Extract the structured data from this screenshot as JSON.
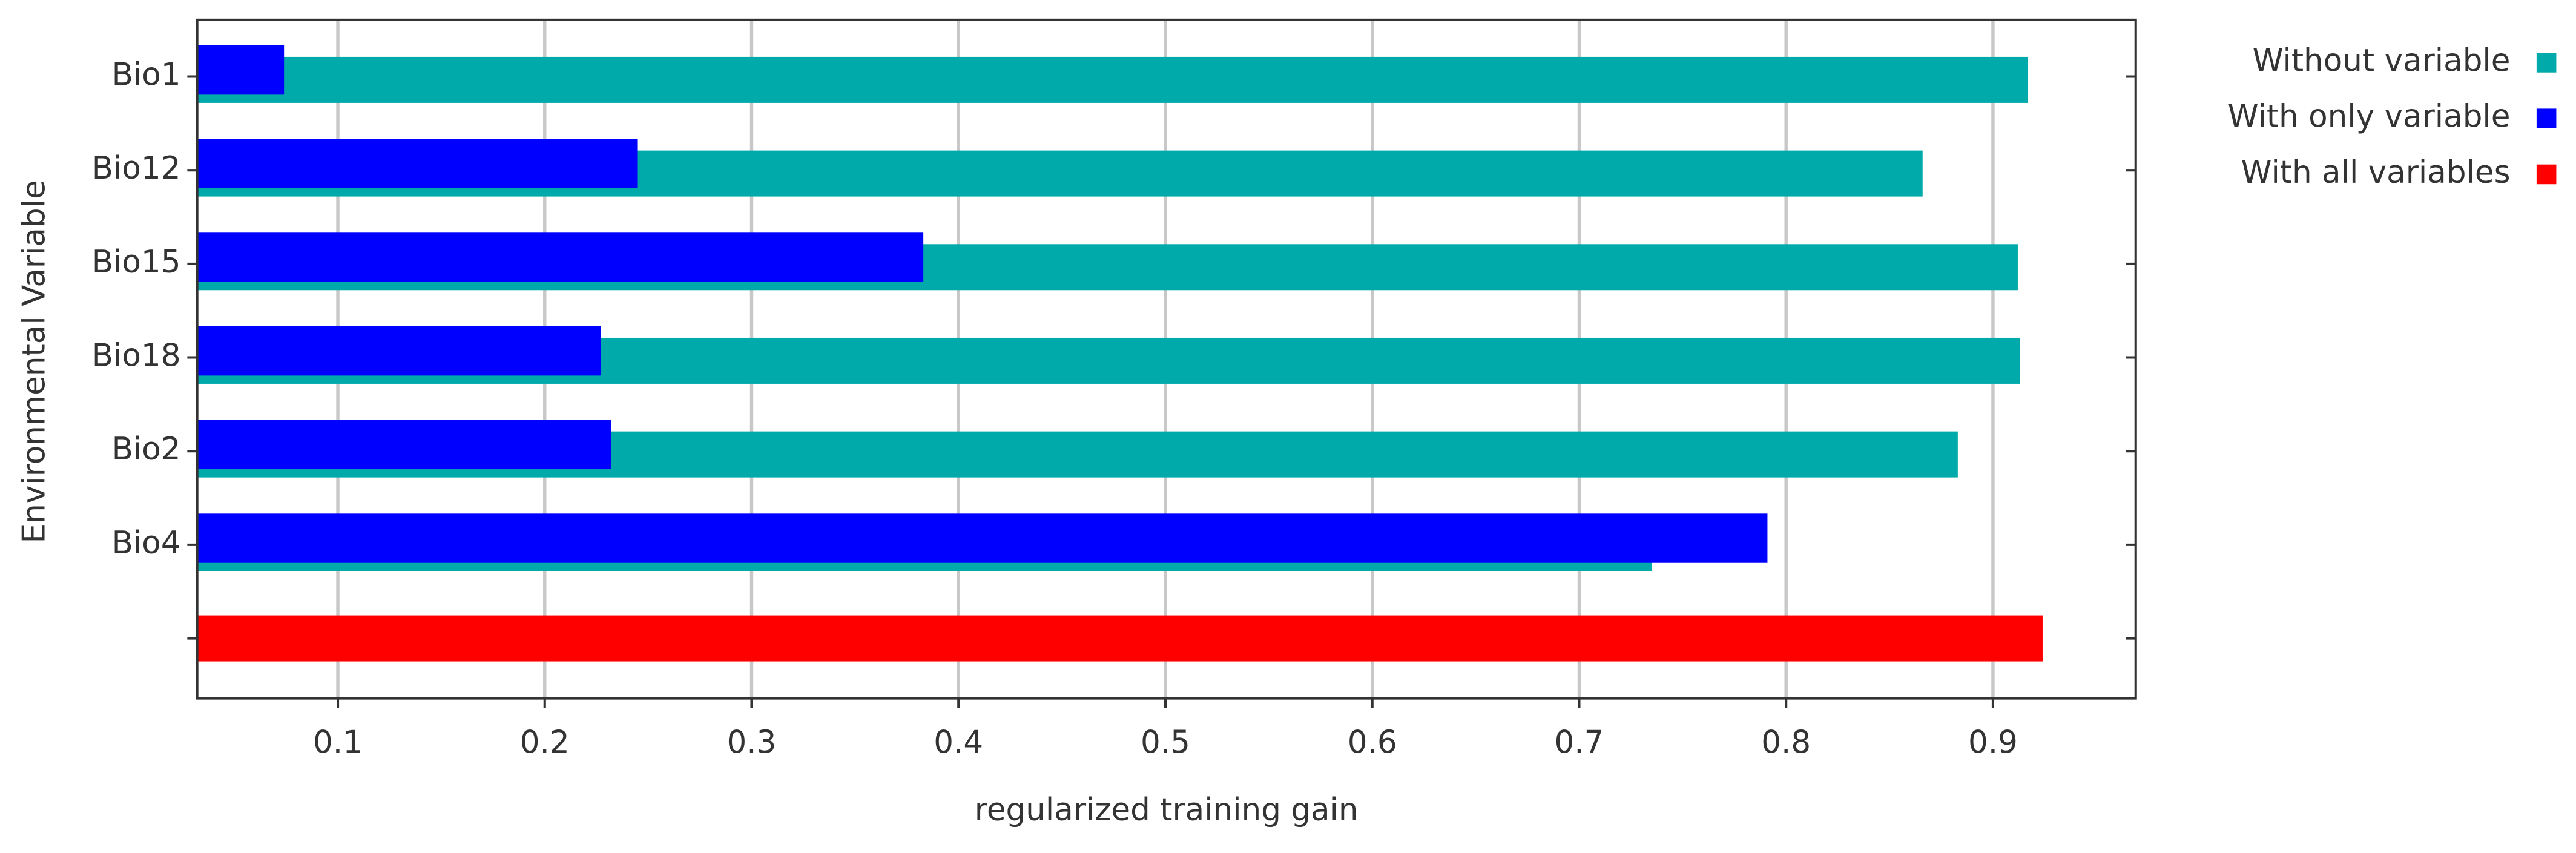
{
  "chart_data": {
    "type": "bar",
    "orientation": "horizontal",
    "xlabel": "regularized training gain",
    "ylabel": "Environmental Variable",
    "categories": [
      "Bio1",
      "Bio12",
      "Bio15",
      "Bio18",
      "Bio2",
      "Bio4",
      null
    ],
    "series": [
      {
        "name": "Without variable",
        "color": "#00aaaa",
        "values": [
          0.917,
          0.866,
          0.912,
          0.913,
          0.883,
          0.735,
          null
        ]
      },
      {
        "name": "With only variable",
        "color": "#0000ff",
        "values": [
          0.074,
          0.245,
          0.383,
          0.227,
          0.232,
          0.791,
          null
        ]
      },
      {
        "name": "With all variables",
        "color": "#ff0000",
        "values": [
          null,
          null,
          null,
          null,
          null,
          null,
          0.924
        ]
      }
    ],
    "xlim": [
      0.032,
      0.969
    ],
    "xticks": [
      0.1,
      0.2,
      0.3,
      0.4,
      0.5,
      0.6,
      0.7,
      0.8,
      0.9
    ],
    "grid": true,
    "legend": "top-right"
  }
}
